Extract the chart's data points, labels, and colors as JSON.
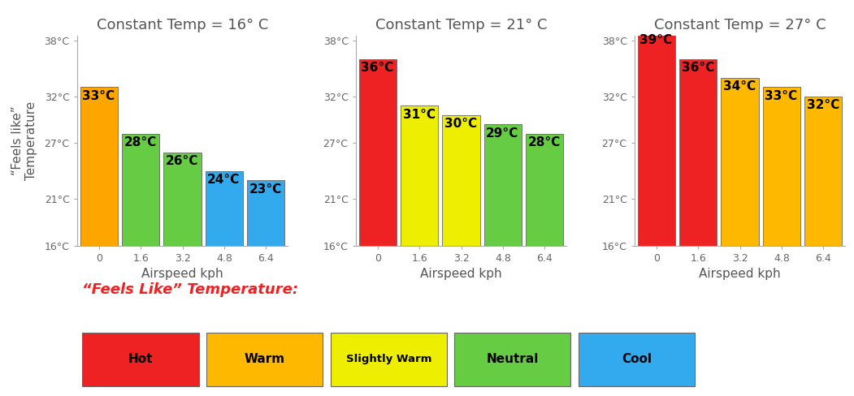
{
  "charts": [
    {
      "title": "Constant Temp = 16° C",
      "values": [
        33,
        28,
        26,
        24,
        23
      ],
      "labels": [
        "33°C",
        "28°C",
        "26°C",
        "24°C",
        "23°C"
      ],
      "colors": [
        "#FFA500",
        "#66CC44",
        "#66CC44",
        "#33AAEE",
        "#33AAEE"
      ],
      "airspeed": [
        0,
        1.6,
        3.2,
        4.8,
        6.4
      ]
    },
    {
      "title": "Constant Temp = 21° C",
      "values": [
        36,
        31,
        30,
        29,
        28
      ],
      "labels": [
        "36°C",
        "31°C",
        "30°C",
        "29°C",
        "28°C"
      ],
      "colors": [
        "#EE2222",
        "#EEEE00",
        "#EEEE00",
        "#66CC44",
        "#66CC44"
      ],
      "airspeed": [
        0,
        1.6,
        3.2,
        4.8,
        6.4
      ]
    },
    {
      "title": "Constant Temp = 27° C",
      "values": [
        39,
        36,
        34,
        33,
        32
      ],
      "labels": [
        "39°C",
        "36°C",
        "34°C",
        "33°C",
        "32°C"
      ],
      "colors": [
        "#EE2222",
        "#EE2222",
        "#FFB800",
        "#FFB800",
        "#FFB800"
      ],
      "airspeed": [
        0,
        1.6,
        3.2,
        4.8,
        6.4
      ]
    }
  ],
  "ylim_min": 16,
  "ylim_max": 38,
  "ylim_display_max": 38.5,
  "yticks": [
    16,
    21,
    27,
    32,
    38
  ],
  "ytick_labels": [
    "16°C",
    "21°C",
    "27°C",
    "32°C",
    "38°C"
  ],
  "xlabel": "Airspeed kph",
  "ylabel_line1": "“Feels like”",
  "ylabel_line2": "Temperature",
  "legend_title": "“Feels Like” Temperature:",
  "legend_items": [
    {
      "label": "Hot",
      "color": "#EE2222"
    },
    {
      "label": "Warm",
      "color": "#FFB800"
    },
    {
      "label": "Slightly Warm",
      "color": "#EEEE00"
    },
    {
      "label": "Neutral",
      "color": "#66CC44"
    },
    {
      "label": "Cool",
      "color": "#33AAEE"
    }
  ],
  "background_color": "#FFFFFF",
  "bar_edge_color": "#666666",
  "bar_edge_width": 0.6,
  "label_fontsize": 11,
  "title_fontsize": 13,
  "axis_label_fontsize": 11,
  "tick_fontsize": 9,
  "bar_width": 1.45,
  "xlim_min": -0.85,
  "xlim_max": 7.25
}
